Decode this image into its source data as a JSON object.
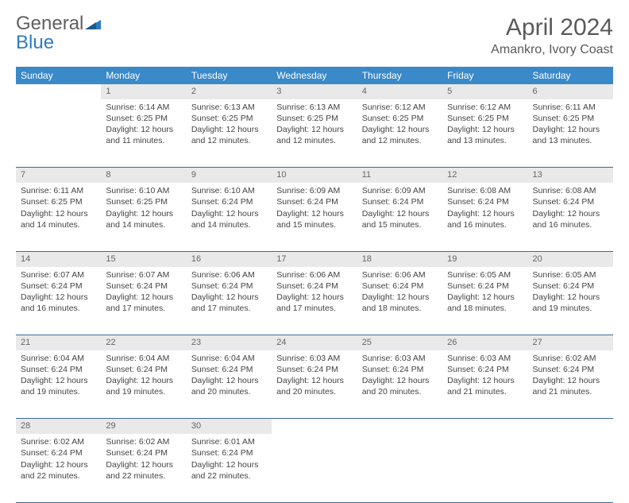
{
  "brand": {
    "word1": "General",
    "word2": "Blue"
  },
  "title": {
    "month": "April 2024",
    "location": "Amankro, Ivory Coast"
  },
  "colors": {
    "header_bg": "#3a89c9",
    "header_text": "#ffffff",
    "daynum_bg": "#e9e9e9",
    "row_border": "#3a6a99",
    "logo_grey": "#606060",
    "logo_blue": "#2d7cc0"
  },
  "day_names": [
    "Sunday",
    "Monday",
    "Tuesday",
    "Wednesday",
    "Thursday",
    "Friday",
    "Saturday"
  ],
  "weeks": [
    {
      "nums": [
        "",
        "1",
        "2",
        "3",
        "4",
        "5",
        "6"
      ],
      "cells": [
        null,
        {
          "sunrise": "Sunrise: 6:14 AM",
          "sunset": "Sunset: 6:25 PM",
          "daylight": "Daylight: 12 hours and 11 minutes."
        },
        {
          "sunrise": "Sunrise: 6:13 AM",
          "sunset": "Sunset: 6:25 PM",
          "daylight": "Daylight: 12 hours and 12 minutes."
        },
        {
          "sunrise": "Sunrise: 6:13 AM",
          "sunset": "Sunset: 6:25 PM",
          "daylight": "Daylight: 12 hours and 12 minutes."
        },
        {
          "sunrise": "Sunrise: 6:12 AM",
          "sunset": "Sunset: 6:25 PM",
          "daylight": "Daylight: 12 hours and 12 minutes."
        },
        {
          "sunrise": "Sunrise: 6:12 AM",
          "sunset": "Sunset: 6:25 PM",
          "daylight": "Daylight: 12 hours and 13 minutes."
        },
        {
          "sunrise": "Sunrise: 6:11 AM",
          "sunset": "Sunset: 6:25 PM",
          "daylight": "Daylight: 12 hours and 13 minutes."
        }
      ]
    },
    {
      "nums": [
        "7",
        "8",
        "9",
        "10",
        "11",
        "12",
        "13"
      ],
      "cells": [
        {
          "sunrise": "Sunrise: 6:11 AM",
          "sunset": "Sunset: 6:25 PM",
          "daylight": "Daylight: 12 hours and 14 minutes."
        },
        {
          "sunrise": "Sunrise: 6:10 AM",
          "sunset": "Sunset: 6:25 PM",
          "daylight": "Daylight: 12 hours and 14 minutes."
        },
        {
          "sunrise": "Sunrise: 6:10 AM",
          "sunset": "Sunset: 6:24 PM",
          "daylight": "Daylight: 12 hours and 14 minutes."
        },
        {
          "sunrise": "Sunrise: 6:09 AM",
          "sunset": "Sunset: 6:24 PM",
          "daylight": "Daylight: 12 hours and 15 minutes."
        },
        {
          "sunrise": "Sunrise: 6:09 AM",
          "sunset": "Sunset: 6:24 PM",
          "daylight": "Daylight: 12 hours and 15 minutes."
        },
        {
          "sunrise": "Sunrise: 6:08 AM",
          "sunset": "Sunset: 6:24 PM",
          "daylight": "Daylight: 12 hours and 16 minutes."
        },
        {
          "sunrise": "Sunrise: 6:08 AM",
          "sunset": "Sunset: 6:24 PM",
          "daylight": "Daylight: 12 hours and 16 minutes."
        }
      ]
    },
    {
      "nums": [
        "14",
        "15",
        "16",
        "17",
        "18",
        "19",
        "20"
      ],
      "cells": [
        {
          "sunrise": "Sunrise: 6:07 AM",
          "sunset": "Sunset: 6:24 PM",
          "daylight": "Daylight: 12 hours and 16 minutes."
        },
        {
          "sunrise": "Sunrise: 6:07 AM",
          "sunset": "Sunset: 6:24 PM",
          "daylight": "Daylight: 12 hours and 17 minutes."
        },
        {
          "sunrise": "Sunrise: 6:06 AM",
          "sunset": "Sunset: 6:24 PM",
          "daylight": "Daylight: 12 hours and 17 minutes."
        },
        {
          "sunrise": "Sunrise: 6:06 AM",
          "sunset": "Sunset: 6:24 PM",
          "daylight": "Daylight: 12 hours and 17 minutes."
        },
        {
          "sunrise": "Sunrise: 6:06 AM",
          "sunset": "Sunset: 6:24 PM",
          "daylight": "Daylight: 12 hours and 18 minutes."
        },
        {
          "sunrise": "Sunrise: 6:05 AM",
          "sunset": "Sunset: 6:24 PM",
          "daylight": "Daylight: 12 hours and 18 minutes."
        },
        {
          "sunrise": "Sunrise: 6:05 AM",
          "sunset": "Sunset: 6:24 PM",
          "daylight": "Daylight: 12 hours and 19 minutes."
        }
      ]
    },
    {
      "nums": [
        "21",
        "22",
        "23",
        "24",
        "25",
        "26",
        "27"
      ],
      "cells": [
        {
          "sunrise": "Sunrise: 6:04 AM",
          "sunset": "Sunset: 6:24 PM",
          "daylight": "Daylight: 12 hours and 19 minutes."
        },
        {
          "sunrise": "Sunrise: 6:04 AM",
          "sunset": "Sunset: 6:24 PM",
          "daylight": "Daylight: 12 hours and 19 minutes."
        },
        {
          "sunrise": "Sunrise: 6:04 AM",
          "sunset": "Sunset: 6:24 PM",
          "daylight": "Daylight: 12 hours and 20 minutes."
        },
        {
          "sunrise": "Sunrise: 6:03 AM",
          "sunset": "Sunset: 6:24 PM",
          "daylight": "Daylight: 12 hours and 20 minutes."
        },
        {
          "sunrise": "Sunrise: 6:03 AM",
          "sunset": "Sunset: 6:24 PM",
          "daylight": "Daylight: 12 hours and 20 minutes."
        },
        {
          "sunrise": "Sunrise: 6:03 AM",
          "sunset": "Sunset: 6:24 PM",
          "daylight": "Daylight: 12 hours and 21 minutes."
        },
        {
          "sunrise": "Sunrise: 6:02 AM",
          "sunset": "Sunset: 6:24 PM",
          "daylight": "Daylight: 12 hours and 21 minutes."
        }
      ]
    },
    {
      "nums": [
        "28",
        "29",
        "30",
        "",
        "",
        "",
        ""
      ],
      "cells": [
        {
          "sunrise": "Sunrise: 6:02 AM",
          "sunset": "Sunset: 6:24 PM",
          "daylight": "Daylight: 12 hours and 22 minutes."
        },
        {
          "sunrise": "Sunrise: 6:02 AM",
          "sunset": "Sunset: 6:24 PM",
          "daylight": "Daylight: 12 hours and 22 minutes."
        },
        {
          "sunrise": "Sunrise: 6:01 AM",
          "sunset": "Sunset: 6:24 PM",
          "daylight": "Daylight: 12 hours and 22 minutes."
        },
        null,
        null,
        null,
        null
      ]
    }
  ]
}
